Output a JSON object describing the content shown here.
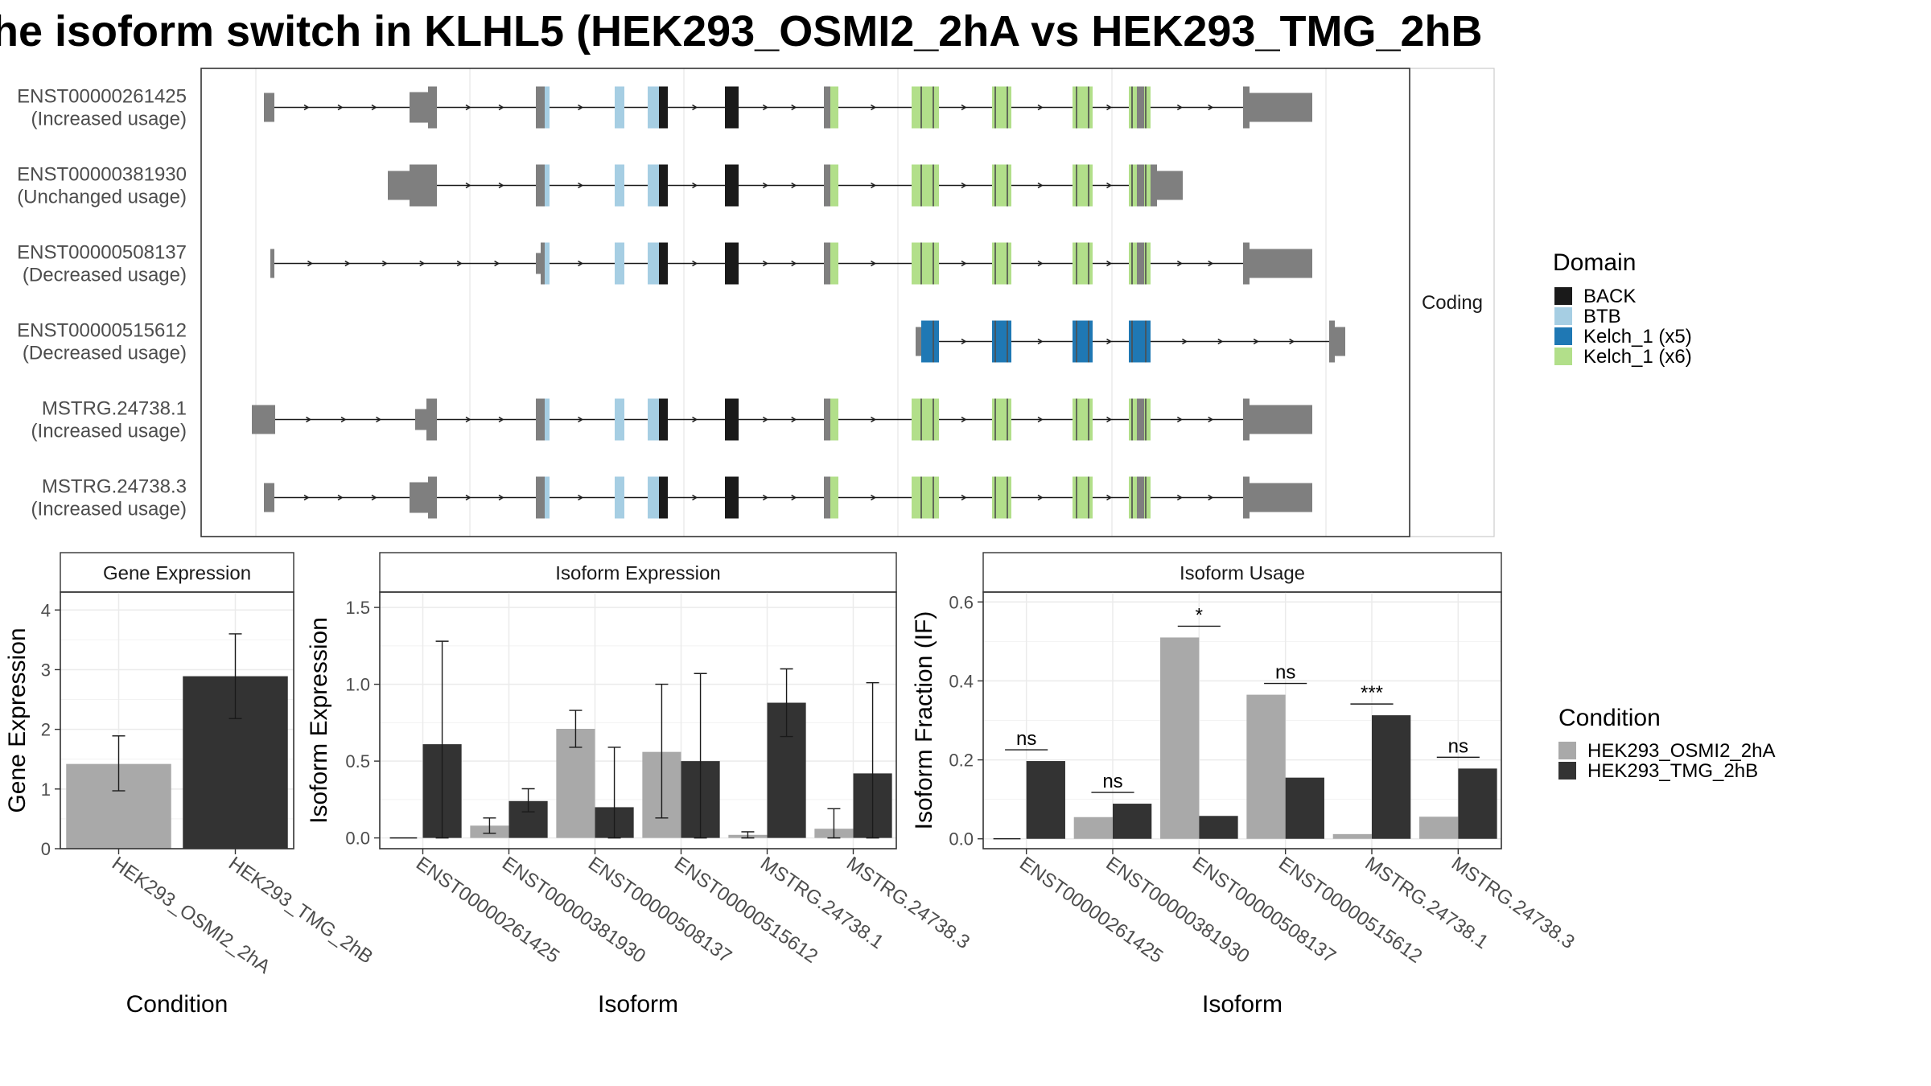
{
  "title": "he isoform switch in KLHL5 (HEK293_OSMI2_2hA vs HEK293_TMG_2hB",
  "colors": {
    "BACK": "#1a1a1a",
    "BTB": "#a6cee3",
    "Kelch_1 (x5)": "#1f78b4",
    "Kelch_1 (x6)": "#b2df8a",
    "noncoding": "#7f7f7f",
    "HEK293_OSMI2_2hA": "#a9a9a9",
    "HEK293_TMG_2hB": "#333333"
  },
  "structure": {
    "strip_label": "Coding",
    "legend_title": "Domain",
    "legend_items": [
      "BACK",
      "BTB",
      "Kelch_1 (x5)",
      "Kelch_1 (x6)"
    ],
    "transcripts": [
      {
        "id": "ENST00000261425",
        "status": "(Increased usage)"
      },
      {
        "id": "ENST00000381930",
        "status": "(Unchanged usage)"
      },
      {
        "id": "ENST00000508137",
        "status": "(Decreased usage)"
      },
      {
        "id": "ENST00000515612",
        "status": "(Decreased usage)"
      },
      {
        "id": "MSTRG.24738.1",
        "status": "(Increased usage)"
      },
      {
        "id": "MSTRG.24738.3",
        "status": "(Increased usage)"
      }
    ]
  },
  "chart_data": [
    {
      "type": "bar",
      "title": "Gene Expression",
      "xlabel": "Condition",
      "ylabel": "Gene Expression",
      "categories": [
        "HEK293_OSMI2_2hA",
        "HEK293_TMG_2hB"
      ],
      "values": [
        1.42,
        2.89
      ],
      "err_low": [
        0.97,
        2.18
      ],
      "err_high": [
        1.89,
        3.6
      ],
      "ylim": [
        0,
        4.3
      ],
      "yticks": [
        0,
        1,
        2,
        3,
        4
      ]
    },
    {
      "type": "bar",
      "title": "Isoform Expression",
      "xlabel": "Isoform",
      "ylabel": "Isoform Expression",
      "categories": [
        "ENST00000261425",
        "ENST00000381930",
        "ENST00000508137",
        "ENST00000515612",
        "MSTRG.24738.1",
        "MSTRG.24738.3"
      ],
      "series": [
        {
          "name": "HEK293_OSMI2_2hA",
          "values": [
            0.0,
            0.08,
            0.71,
            0.56,
            0.02,
            0.06
          ],
          "err_low": [
            0.0,
            0.03,
            0.59,
            0.13,
            0.0,
            0.0
          ],
          "err_high": [
            0.0,
            0.13,
            0.83,
            1.0,
            0.04,
            0.19
          ]
        },
        {
          "name": "HEK293_TMG_2hB",
          "values": [
            0.61,
            0.24,
            0.2,
            0.5,
            0.88,
            0.42
          ],
          "err_low": [
            0.0,
            0.17,
            0.0,
            0.0,
            0.66,
            0.0
          ],
          "err_high": [
            1.28,
            0.32,
            0.59,
            1.07,
            1.1,
            1.01
          ]
        }
      ],
      "ylim": [
        -0.07,
        1.6
      ],
      "yticks": [
        0.0,
        0.5,
        1.0,
        1.5
      ]
    },
    {
      "type": "bar",
      "title": "Isoform Usage",
      "xlabel": "Isoform",
      "ylabel": "Isoform Fraction (IF)",
      "categories": [
        "ENST00000261425",
        "ENST00000381930",
        "ENST00000508137",
        "ENST00000515612",
        "MSTRG.24738.1",
        "MSTRG.24738.3"
      ],
      "series": [
        {
          "name": "HEK293_OSMI2_2hA",
          "values": [
            0.0,
            0.055,
            0.51,
            0.365,
            0.012,
            0.056
          ]
        },
        {
          "name": "HEK293_TMG_2hB",
          "values": [
            0.197,
            0.089,
            0.058,
            0.155,
            0.313,
            0.178
          ]
        }
      ],
      "significance": [
        "ns",
        "ns",
        "*",
        "ns",
        "***",
        "ns"
      ],
      "ylim": [
        -0.025,
        0.625
      ],
      "yticks": [
        0.0,
        0.2,
        0.4,
        0.6
      ]
    }
  ],
  "condition_legend": {
    "title": "Condition",
    "items": [
      "HEK293_OSMI2_2hA",
      "HEK293_TMG_2hB"
    ]
  }
}
